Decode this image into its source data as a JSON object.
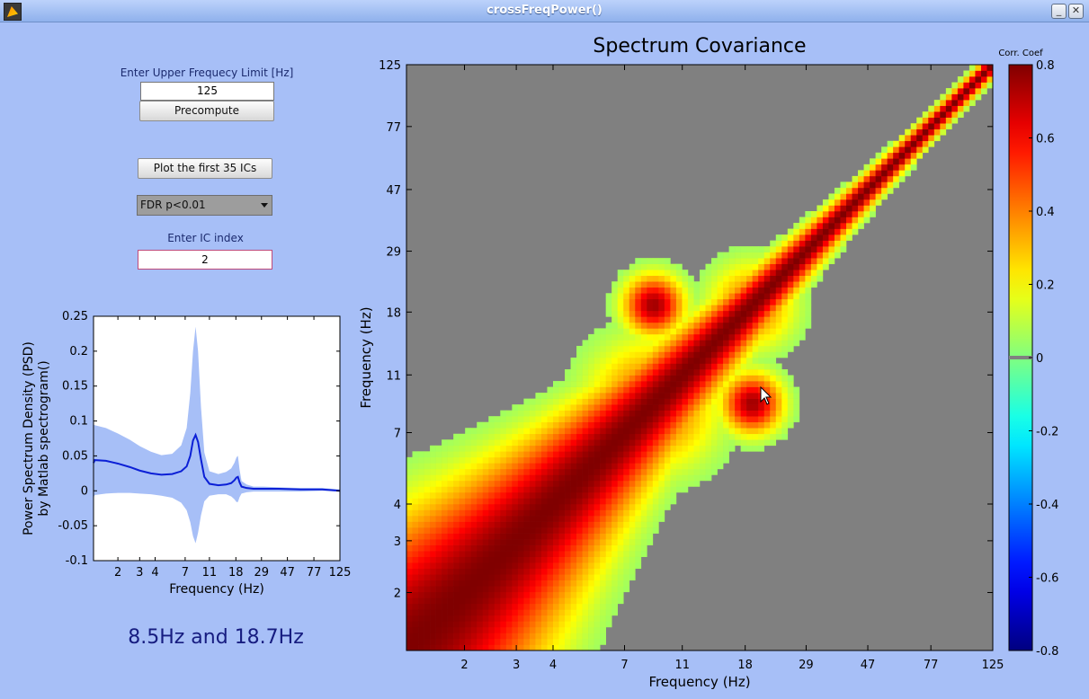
{
  "window": {
    "title": "crossFreqPower()"
  },
  "controls": {
    "upper_freq_label": "Enter Upper Frequecy Limit [Hz]",
    "upper_freq_value": "125",
    "precompute_label": "Precompute",
    "plot_ics_label": "Plot the first 35 ICs",
    "fdr_selected": "FDR p<0.01",
    "ic_index_label": "Enter IC index",
    "ic_index_value": "2"
  },
  "peak_annotation": "8.5Hz and 18.7Hz",
  "chart_data": [
    {
      "type": "line",
      "title": "",
      "xlabel": "Frequency (Hz)",
      "ylabel": [
        "Power Spectrum Density (PSD)",
        "by Matlab spectrogram()"
      ],
      "xscale": "log",
      "xticks": [
        2,
        3,
        4,
        7,
        11,
        18,
        29,
        47,
        77,
        125
      ],
      "yticks": [
        -0.1,
        -0.05,
        0,
        0.05,
        0.1,
        0.15,
        0.2,
        0.25
      ],
      "ylim": [
        -0.1,
        0.25
      ],
      "series": [
        {
          "kind": "line",
          "color": "#0b1fd6",
          "x": [
            1.0,
            1.3,
            1.6,
            2.0,
            2.5,
            3.0,
            3.7,
            4.5,
            5.5,
            6.5,
            7.2,
            7.7,
            8.1,
            8.5,
            8.9,
            9.4,
            10.0,
            11.0,
            13.0,
            15.0,
            16.5,
            17.5,
            18.2,
            18.7,
            19.3,
            20.0,
            22.0,
            25.0,
            30.0,
            40.0,
            60.0,
            90.0,
            125.0
          ],
          "y": [
            0.04,
            0.044,
            0.043,
            0.039,
            0.034,
            0.029,
            0.025,
            0.023,
            0.024,
            0.028,
            0.035,
            0.05,
            0.072,
            0.08,
            0.07,
            0.045,
            0.02,
            0.01,
            0.008,
            0.009,
            0.011,
            0.015,
            0.019,
            0.02,
            0.012,
            0.006,
            0.004,
            0.003,
            0.003,
            0.003,
            0.002,
            0.002,
            0.0
          ]
        },
        {
          "kind": "band",
          "color": "#a7bff7",
          "x": [
            1.0,
            1.3,
            1.6,
            2.0,
            2.5,
            3.0,
            3.7,
            4.5,
            5.5,
            6.5,
            7.2,
            7.7,
            8.1,
            8.5,
            8.9,
            9.4,
            10.0,
            11.0,
            13.0,
            15.0,
            16.5,
            17.5,
            18.2,
            18.7,
            19.3,
            20.0,
            22.0,
            25.0,
            30.0,
            40.0,
            60.0,
            90.0,
            125.0
          ],
          "upper": [
            0.095,
            0.094,
            0.09,
            0.082,
            0.073,
            0.064,
            0.056,
            0.051,
            0.053,
            0.065,
            0.09,
            0.14,
            0.2,
            0.235,
            0.2,
            0.12,
            0.055,
            0.028,
            0.024,
            0.027,
            0.032,
            0.04,
            0.048,
            0.05,
            0.03,
            0.014,
            0.009,
            0.006,
            0.006,
            0.005,
            0.004,
            0.004,
            0.002
          ],
          "lower": [
            -0.01,
            -0.006,
            -0.004,
            -0.003,
            -0.003,
            -0.004,
            -0.005,
            -0.007,
            -0.01,
            -0.017,
            -0.028,
            -0.045,
            -0.065,
            -0.075,
            -0.06,
            -0.035,
            -0.015,
            -0.007,
            -0.005,
            -0.005,
            -0.008,
            -0.012,
            -0.016,
            -0.016,
            -0.009,
            -0.004,
            -0.002,
            -0.001,
            -0.001,
            -0.001,
            -0.001,
            0.0,
            -0.001
          ]
        }
      ]
    },
    {
      "type": "heatmap",
      "title": "Spectrum Covariance",
      "xlabel": "Frequency (Hz)",
      "ylabel": "Frequency (Hz)",
      "scale": "log",
      "xticks": [
        2,
        3,
        4,
        7,
        11,
        18,
        29,
        47,
        77,
        125
      ],
      "yticks": [
        2,
        3,
        4,
        7,
        11,
        18,
        29,
        47,
        77,
        125
      ],
      "range": [
        1.27,
        125
      ],
      "colorbar": {
        "title": "Corr. Coef",
        "range": [
          -0.8,
          0.8
        ],
        "ticks": [
          -0.8,
          -0.6,
          -0.4,
          -0.2,
          0,
          0.2,
          0.4,
          0.6,
          0.8
        ]
      },
      "masked_color": "#808080",
      "hotspots": [
        {
          "fx": 8.6,
          "fy": 18.6,
          "r": 0.14,
          "peak": 0.75
        },
        {
          "fx": 18.6,
          "fy": 8.6,
          "r": 0.14,
          "peak": 0.75
        },
        {
          "fx": 8.5,
          "fy": 8.5,
          "r": 0.3,
          "peak": 0.5
        },
        {
          "fx": 18.5,
          "fy": 18.5,
          "r": 0.2,
          "peak": 0.45
        }
      ]
    }
  ]
}
